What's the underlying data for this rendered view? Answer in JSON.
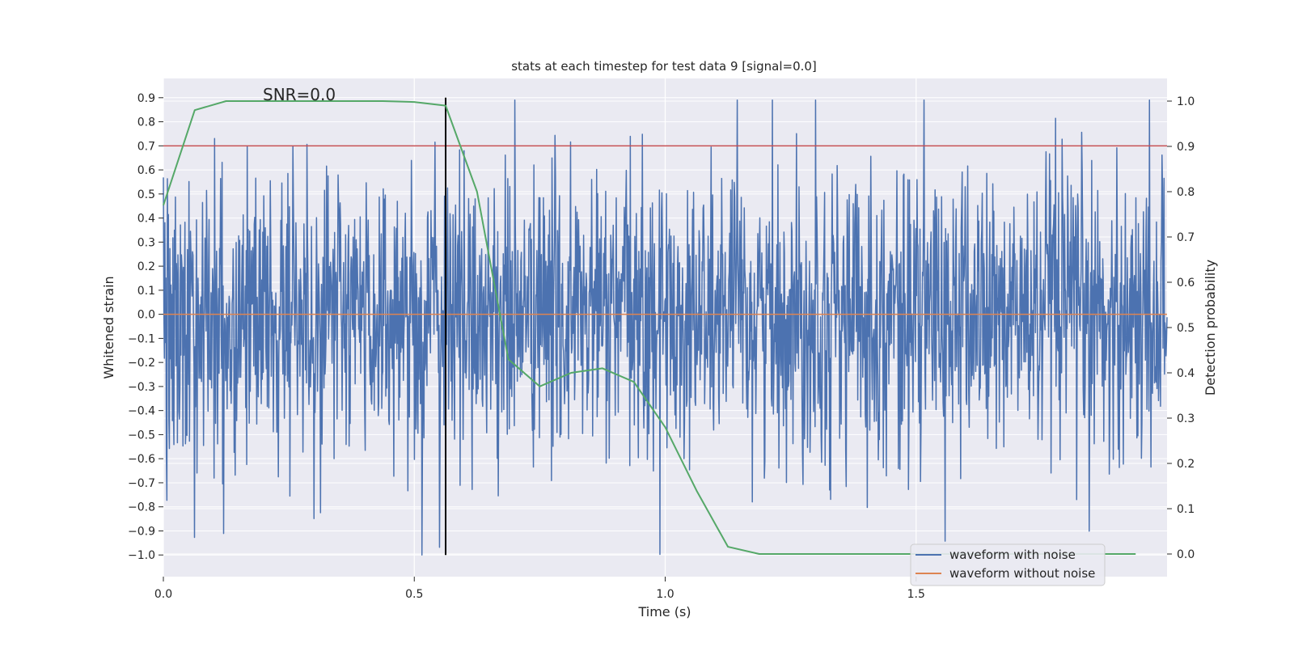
{
  "chart_data": {
    "type": "line",
    "title": "stats at each timestep for test data 9 [signal=0.0]",
    "xlabel": "Time (s)",
    "ylabel": "Whitened strain",
    "y2label": "Detection probability",
    "xlim": [
      0.0,
      2.0
    ],
    "ylim": [
      -1.09,
      0.98
    ],
    "y2lim": [
      -0.05,
      1.05
    ],
    "xticks": [
      0.0,
      0.5,
      1.0,
      1.5
    ],
    "xtick_labels": [
      "0.0",
      "0.5",
      "1.0",
      "1.5"
    ],
    "yticks": [
      0.9,
      0.8,
      0.7,
      0.6,
      0.5,
      0.4,
      0.3,
      0.2,
      0.1,
      0.0,
      -0.1,
      -0.2,
      -0.3,
      -0.4,
      -0.5,
      -0.6,
      -0.7,
      -0.8,
      -0.9,
      -1.0
    ],
    "ytick_labels": [
      "0.9",
      "0.8",
      "0.7",
      "0.6",
      "0.5",
      "0.4",
      "0.3",
      "0.2",
      "0.1",
      "0.0",
      "−0.1",
      "−0.2",
      "−0.3",
      "−0.4",
      "−0.5",
      "−0.6",
      "−0.7",
      "−0.8",
      "−0.9",
      "−1.0"
    ],
    "y2ticks": [
      1.0,
      0.9,
      0.8,
      0.7,
      0.6,
      0.5,
      0.4,
      0.3,
      0.2,
      0.1,
      0.0
    ],
    "y2tick_labels": [
      "1.0",
      "0.9",
      "0.8",
      "0.7",
      "0.6",
      "0.5",
      "0.4",
      "0.3",
      "0.2",
      "0.1",
      "0.0"
    ],
    "annotation": "SNR=0.0",
    "annotation_at": {
      "x": 0.2,
      "y": 0.9
    },
    "grid": true,
    "legend_position": "lower-right",
    "series": [
      {
        "name": "waveform with noise",
        "color": "#4c72b0",
        "axis": "left",
        "generator": {
          "n": 2000,
          "seed": 9,
          "typical_amplitude": 0.3,
          "spike_min": -1.0,
          "spike_max": 0.89
        },
        "notable_points": [
          {
            "x": 0.515,
            "y": -1.0
          },
          {
            "x": 1.3,
            "y": 0.89
          },
          {
            "x": 1.82,
            "y": -0.77
          }
        ]
      },
      {
        "name": "waveform without noise",
        "color": "#dd8452",
        "axis": "left",
        "constant": 0.0
      },
      {
        "name": "detection probability",
        "color": "#55a868",
        "axis": "right",
        "in_legend": false,
        "x": [
          0.0,
          0.0625,
          0.125,
          0.1875,
          0.25,
          0.3125,
          0.375,
          0.4375,
          0.5,
          0.5625,
          0.625,
          0.6875,
          0.75,
          0.8125,
          0.875,
          0.9375,
          1.0,
          1.0625,
          1.125,
          1.1875,
          1.25,
          1.3125,
          1.375,
          1.4375,
          1.5,
          1.5625,
          1.625,
          1.6875,
          1.75,
          1.8125,
          1.875,
          1.9375
        ],
        "y": [
          0.77,
          0.98,
          1.0,
          1.0,
          1.0,
          1.0,
          1.0,
          1.0,
          0.998,
          0.99,
          0.8,
          0.43,
          0.37,
          0.4,
          0.41,
          0.38,
          0.28,
          0.14,
          0.016,
          0.0,
          0.0,
          0.0,
          0.0,
          0.0,
          0.0,
          0.0,
          0.0,
          0.0,
          0.0,
          0.0,
          0.0,
          0.0
        ]
      }
    ],
    "hlines": [
      {
        "y": 0.7,
        "axis": "left",
        "color": "#c44e52"
      }
    ],
    "vlines": [
      {
        "x": 0.5625,
        "y_from": -1.0,
        "y_to": 0.9,
        "color": "#000000"
      }
    ]
  }
}
